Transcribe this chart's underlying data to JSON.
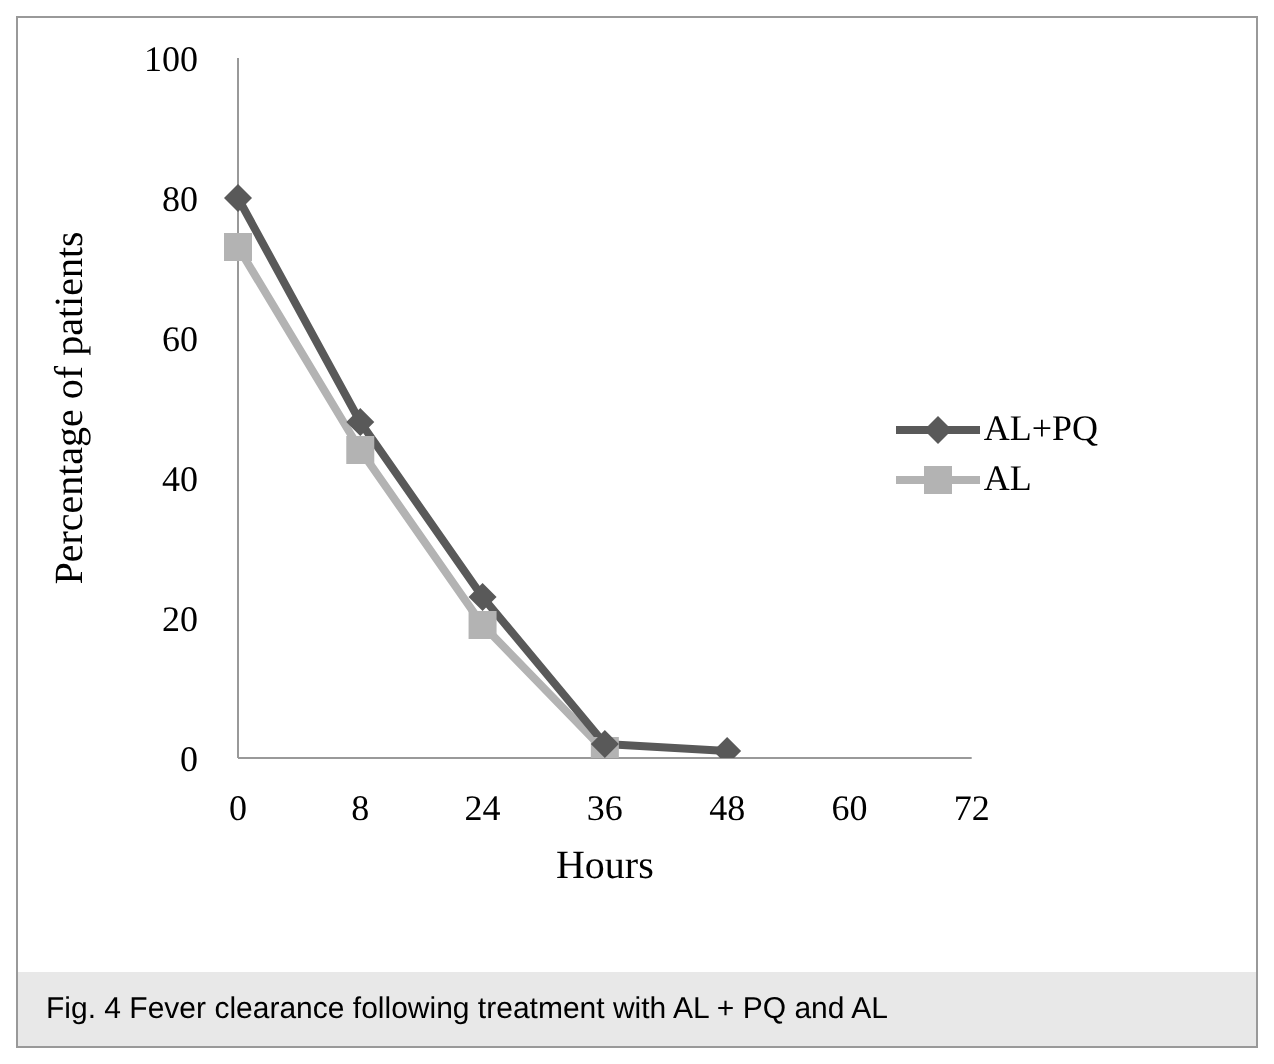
{
  "chart_data": {
    "type": "line",
    "xlabel": "Hours",
    "ylabel": "Percentage of patients",
    "categories": [
      "0",
      "8",
      "24",
      "36",
      "48",
      "60",
      "72"
    ],
    "series": [
      {
        "name": "AL+PQ",
        "color": "#595959",
        "marker": "diamond",
        "values": [
          80,
          48,
          23,
          2,
          1,
          null,
          null
        ]
      },
      {
        "name": "AL",
        "color": "#b3b3b3",
        "marker": "square",
        "values": [
          73,
          44,
          19,
          1,
          null,
          null,
          null
        ]
      }
    ],
    "ylim": [
      0,
      100
    ],
    "yticks": [
      0,
      20,
      40,
      60,
      80,
      100
    ],
    "grid": false,
    "legend": "right",
    "annotations": [
      "Fig. 4 Fever clearance following treatment with AL + PQ and AL"
    ]
  }
}
